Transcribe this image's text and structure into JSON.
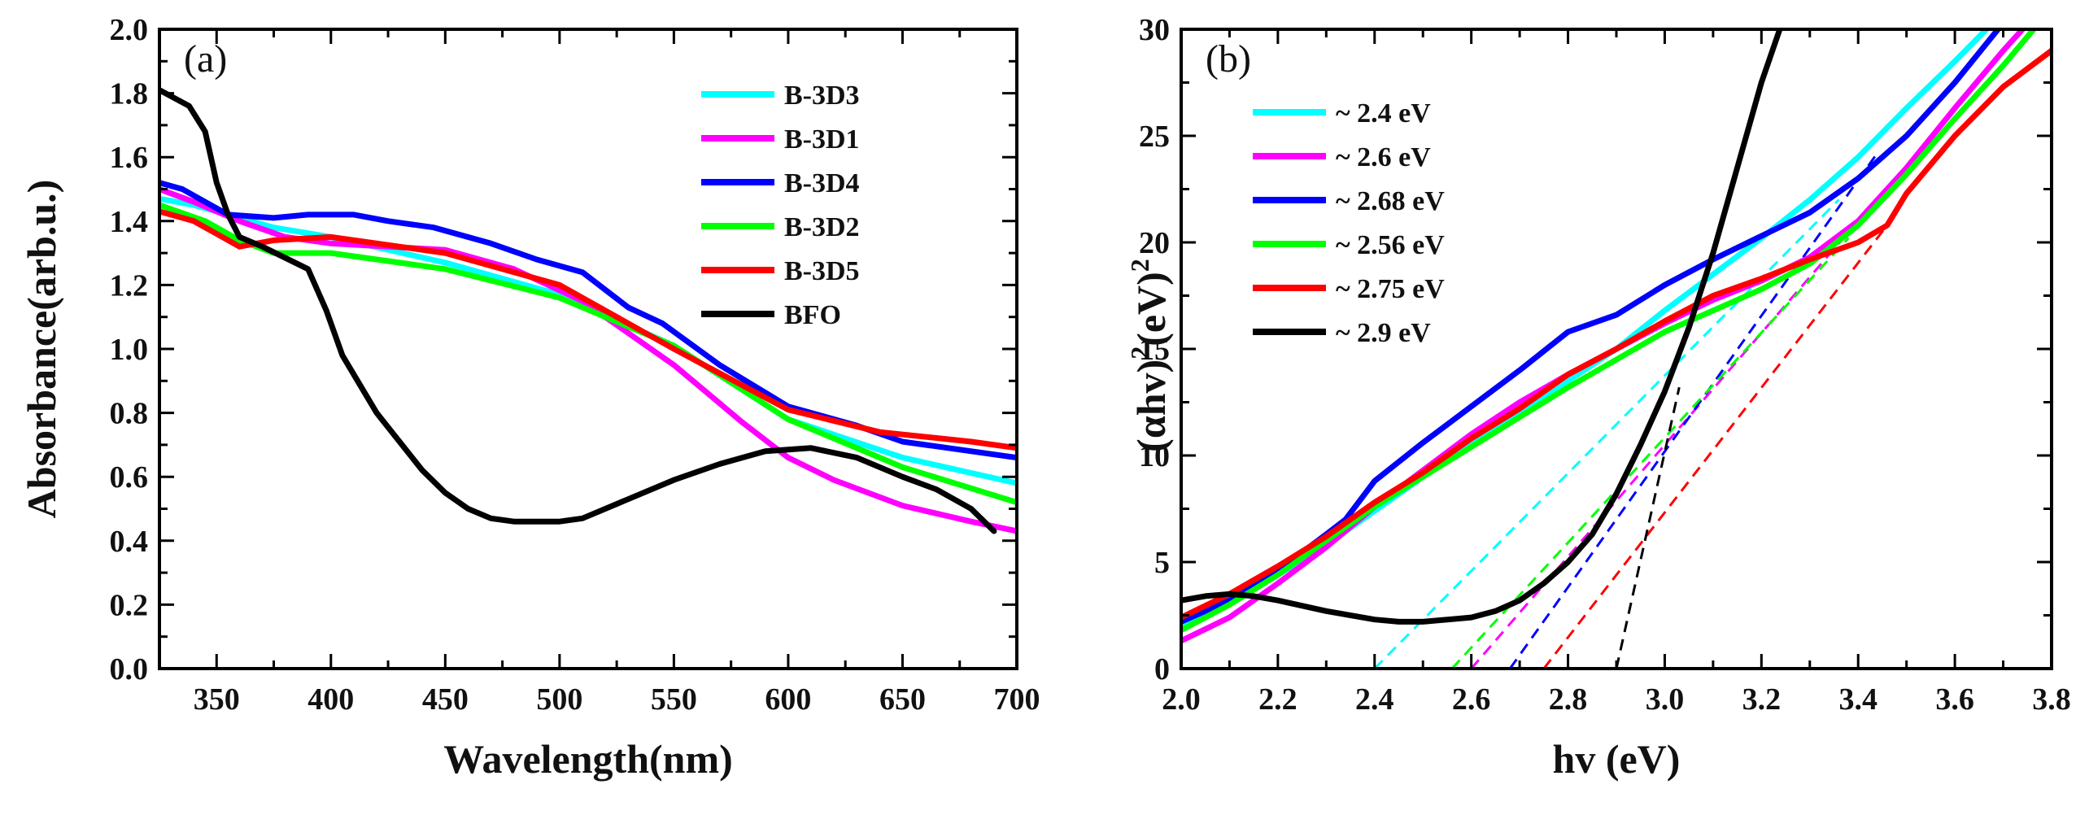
{
  "chart_data": [
    {
      "type": "line",
      "panel_label": "(a)",
      "xlabel": "Wavelength(nm)",
      "ylabel": "Absorbance(arb.u.)",
      "xlim": [
        325,
        700
      ],
      "ylim": [
        0.0,
        2.0
      ],
      "xticks": [
        350,
        400,
        450,
        500,
        550,
        600,
        650,
        700
      ],
      "yticks": [
        0.0,
        0.2,
        0.4,
        0.6,
        0.8,
        1.0,
        1.2,
        1.4,
        1.6,
        1.8,
        2.0
      ],
      "ytick_labels": [
        "0.0",
        "0.2",
        "0.4",
        "0.6",
        "0.8",
        "1.0",
        "1.2",
        "1.4",
        "1.6",
        "1.8",
        "2.0"
      ],
      "legend_position": "top-right",
      "series": [
        {
          "name": "B-3D3",
          "color": "#00FFFF",
          "x": [
            325,
            340,
            355,
            375,
            400,
            450,
            500,
            550,
            600,
            650,
            700
          ],
          "y": [
            1.47,
            1.45,
            1.42,
            1.38,
            1.35,
            1.27,
            1.17,
            1.01,
            0.78,
            0.66,
            0.58
          ]
        },
        {
          "name": "B-3D1",
          "color": "#FF00FF",
          "x": [
            325,
            340,
            360,
            380,
            400,
            450,
            480,
            510,
            550,
            580,
            600,
            620,
            650,
            680,
            700
          ],
          "y": [
            1.5,
            1.46,
            1.4,
            1.35,
            1.33,
            1.31,
            1.25,
            1.15,
            0.95,
            0.77,
            0.66,
            0.59,
            0.51,
            0.46,
            0.43
          ]
        },
        {
          "name": "B-3D4",
          "color": "#0000FF",
          "x": [
            325,
            335,
            355,
            375,
            390,
            410,
            425,
            445,
            470,
            490,
            510,
            530,
            545,
            570,
            600,
            630,
            650,
            670,
            700
          ],
          "y": [
            1.52,
            1.5,
            1.42,
            1.41,
            1.42,
            1.42,
            1.4,
            1.38,
            1.33,
            1.28,
            1.24,
            1.13,
            1.08,
            0.95,
            0.82,
            0.76,
            0.71,
            0.69,
            0.66
          ]
        },
        {
          "name": "B-3D2",
          "color": "#00FF00",
          "x": [
            325,
            345,
            360,
            375,
            400,
            450,
            500,
            550,
            600,
            650,
            700
          ],
          "y": [
            1.45,
            1.4,
            1.34,
            1.3,
            1.3,
            1.25,
            1.16,
            1.01,
            0.78,
            0.63,
            0.52
          ]
        },
        {
          "name": "B-3D5",
          "color": "#FF0000",
          "x": [
            325,
            340,
            350,
            360,
            375,
            400,
            450,
            500,
            550,
            600,
            640,
            680,
            700
          ],
          "y": [
            1.43,
            1.4,
            1.36,
            1.32,
            1.34,
            1.35,
            1.3,
            1.2,
            1.0,
            0.81,
            0.74,
            0.71,
            0.69
          ]
        },
        {
          "name": "BFO",
          "color": "#000000",
          "x": [
            325,
            338,
            345,
            350,
            355,
            360,
            370,
            390,
            398,
            405,
            420,
            440,
            450,
            460,
            470,
            480,
            490,
            500,
            510,
            530,
            550,
            570,
            590,
            610,
            630,
            650,
            665,
            680,
            690
          ],
          "y": [
            1.81,
            1.76,
            1.68,
            1.52,
            1.42,
            1.35,
            1.32,
            1.25,
            1.12,
            0.98,
            0.8,
            0.62,
            0.55,
            0.5,
            0.47,
            0.46,
            0.46,
            0.46,
            0.47,
            0.53,
            0.59,
            0.64,
            0.68,
            0.69,
            0.66,
            0.6,
            0.56,
            0.5,
            0.43
          ]
        }
      ]
    },
    {
      "type": "line",
      "panel_label": "(b)",
      "xlabel": "hv (eV)",
      "ylabel": "(αhv)²(eV)²",
      "ylabel_parts": {
        "base": "(αhv)",
        "sup1": "2",
        "mid": "(eV)",
        "sup2": "2"
      },
      "xlim": [
        2.0,
        3.8
      ],
      "ylim": [
        0,
        30
      ],
      "xticks": [
        2.0,
        2.2,
        2.4,
        2.6,
        2.8,
        3.0,
        3.2,
        3.4,
        3.6,
        3.8
      ],
      "xtick_labels": [
        "2.0",
        "2.2",
        "2.4",
        "2.6",
        "2.8",
        "3.0",
        "3.2",
        "3.4",
        "3.6",
        "3.8"
      ],
      "yticks": [
        0,
        5,
        10,
        15,
        20,
        25,
        30
      ],
      "legend_position": "top-left",
      "series": [
        {
          "name": "~ 2.4 eV",
          "color": "#00FFFF",
          "x": [
            2.0,
            2.1,
            2.2,
            2.3,
            2.4,
            2.5,
            2.6,
            2.7,
            2.8,
            2.9,
            3.0,
            3.1,
            3.2,
            3.3,
            3.4,
            3.5,
            3.6,
            3.7
          ],
          "y": [
            2.0,
            3.1,
            4.4,
            5.8,
            7.4,
            9.0,
            10.5,
            12.0,
            13.5,
            15.0,
            16.8,
            18.5,
            20.2,
            22.0,
            24.0,
            26.3,
            28.5,
            30.8
          ]
        },
        {
          "name": "~ 2.6 eV",
          "color": "#FF00FF",
          "x": [
            2.0,
            2.1,
            2.2,
            2.3,
            2.4,
            2.5,
            2.6,
            2.7,
            2.8,
            2.9,
            3.0,
            3.1,
            3.2,
            3.3,
            3.4,
            3.5,
            3.6,
            3.7,
            3.78
          ],
          "y": [
            1.3,
            2.4,
            4.0,
            5.7,
            7.6,
            9.3,
            11.0,
            12.5,
            13.8,
            15.0,
            16.2,
            17.3,
            18.2,
            19.3,
            21.0,
            23.5,
            26.3,
            29.0,
            31.0
          ]
        },
        {
          "name": "~ 2.68 eV",
          "color": "#0000FF",
          "x": [
            2.0,
            2.1,
            2.2,
            2.3,
            2.34,
            2.4,
            2.5,
            2.6,
            2.7,
            2.8,
            2.9,
            3.0,
            3.1,
            3.2,
            3.3,
            3.4,
            3.5,
            3.6,
            3.7
          ],
          "y": [
            2.2,
            3.2,
            4.6,
            6.3,
            7.0,
            8.8,
            10.6,
            12.3,
            14.0,
            15.8,
            16.6,
            18.0,
            19.2,
            20.3,
            21.4,
            23.0,
            25.0,
            27.5,
            30.3
          ]
        },
        {
          "name": "~ 2.56 eV",
          "color": "#00FF00",
          "x": [
            2.0,
            2.1,
            2.2,
            2.3,
            2.4,
            2.5,
            2.6,
            2.7,
            2.8,
            2.9,
            3.0,
            3.1,
            3.2,
            3.3,
            3.4,
            3.5,
            3.6,
            3.7,
            3.8
          ],
          "y": [
            1.8,
            3.0,
            4.4,
            6.0,
            7.6,
            9.0,
            10.4,
            11.8,
            13.2,
            14.5,
            15.8,
            16.8,
            17.8,
            19.0,
            20.8,
            23.2,
            25.8,
            28.3,
            31.0
          ]
        },
        {
          "name": "~ 2.75 eV",
          "color": "#FF0000",
          "x": [
            2.0,
            2.1,
            2.2,
            2.3,
            2.4,
            2.5,
            2.6,
            2.7,
            2.8,
            2.9,
            3.0,
            3.1,
            3.2,
            3.3,
            3.4,
            3.46,
            3.5,
            3.6,
            3.7,
            3.8
          ],
          "y": [
            2.4,
            3.5,
            4.8,
            6.2,
            7.8,
            9.2,
            10.8,
            12.2,
            13.8,
            15.0,
            16.3,
            17.5,
            18.3,
            19.2,
            20.0,
            20.8,
            22.3,
            25.0,
            27.3,
            29.0
          ]
        },
        {
          "name": "~ 2.9 eV",
          "color": "#000000",
          "x": [
            2.0,
            2.05,
            2.1,
            2.15,
            2.2,
            2.3,
            2.4,
            2.45,
            2.5,
            2.6,
            2.65,
            2.7,
            2.75,
            2.8,
            2.85,
            2.9,
            2.95,
            3.0,
            3.05,
            3.1,
            3.15,
            3.2,
            3.25
          ],
          "y": [
            3.2,
            3.4,
            3.5,
            3.4,
            3.2,
            2.7,
            2.3,
            2.2,
            2.2,
            2.4,
            2.7,
            3.2,
            4.0,
            5.0,
            6.3,
            8.2,
            10.5,
            13.0,
            16.0,
            19.5,
            23.5,
            27.5,
            30.8
          ]
        }
      ],
      "tangent_lines": [
        {
          "series": "~ 2.4 eV",
          "color": "#00FFFF",
          "x": [
            2.4,
            3.36
          ],
          "y": [
            0,
            22.0
          ]
        },
        {
          "series": "~ 2.6 eV",
          "color": "#FF00FF",
          "x": [
            2.6,
            3.4
          ],
          "y": [
            0,
            21.0
          ]
        },
        {
          "series": "~ 2.68 eV",
          "color": "#0000FF",
          "x": [
            2.68,
            3.44
          ],
          "y": [
            0,
            24.2
          ]
        },
        {
          "series": "~ 2.56 eV",
          "color": "#00FF00",
          "x": [
            2.56,
            3.38
          ],
          "y": [
            0,
            20.2
          ]
        },
        {
          "series": "~ 2.75 eV",
          "color": "#FF0000",
          "x": [
            2.75,
            3.46
          ],
          "y": [
            0,
            20.8
          ]
        },
        {
          "series": "~ 2.9 eV",
          "color": "#000000",
          "x": [
            2.9,
            3.03
          ],
          "y": [
            0,
            13.2
          ]
        }
      ]
    }
  ]
}
